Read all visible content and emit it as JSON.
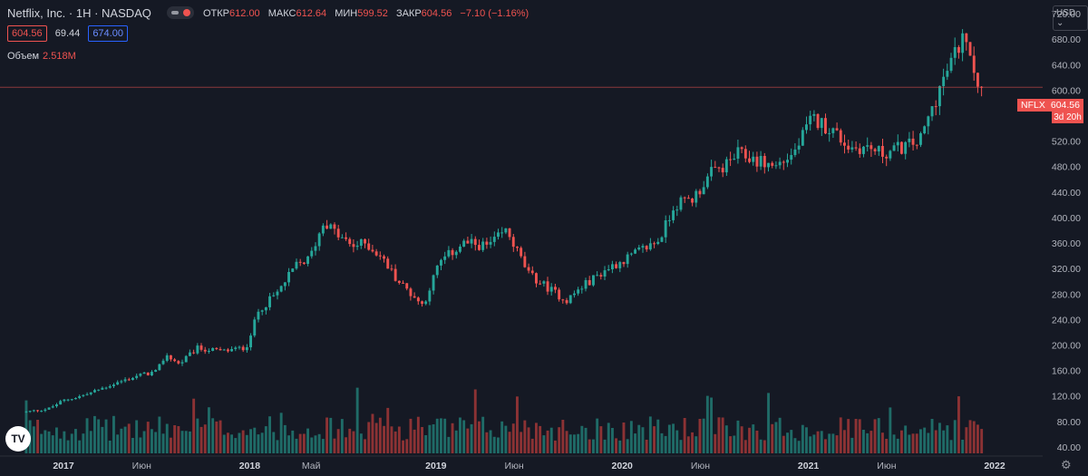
{
  "header": {
    "title": "Netflix, Inc. · 1H · NASDAQ"
  },
  "ohlc": {
    "open_label": "ОТКР",
    "open": "612.00",
    "high_label": "МАКС",
    "high": "612.64",
    "low_label": "МИН",
    "low": "599.52",
    "close_label": "ЗАКР",
    "close": "604.56",
    "change": "−7.10 (−1.16%)"
  },
  "boxes": {
    "last": "604.56",
    "mid": "69.44",
    "ask": "674.00"
  },
  "volume": {
    "label": "Объем",
    "value": "2.518M"
  },
  "currency": {
    "label": "USD",
    "arrow": "⌄"
  },
  "price_label": {
    "ticker": "NFLX",
    "price": "604.56",
    "countdown": "3d 20h"
  },
  "logo": {
    "text": "TV"
  },
  "settings_icon": {
    "glyph": "⚙"
  },
  "colors": {
    "bg": "#151924",
    "up": "#26a69a",
    "down": "#ef5350",
    "upVol": "#1f6b67",
    "downVol": "#8c3234",
    "text": "#b2b5be"
  },
  "chart_data": {
    "type": "candlestick",
    "ylim": [
      30,
      730
    ],
    "y_ticks": [
      "40.00",
      "80.00",
      "120.00",
      "160.00",
      "200.00",
      "240.00",
      "280.00",
      "320.00",
      "360.00",
      "400.00",
      "440.00",
      "480.00",
      "520.00",
      "560.00",
      "600.00",
      "640.00",
      "680.00",
      "720.00"
    ],
    "x_ticks": [
      "2017",
      "Июн",
      "2018",
      "Май",
      "2019",
      "Июн",
      "2020",
      "Июн",
      "2021",
      "Июн",
      "2022"
    ],
    "last_price": 604.56,
    "anchors": [
      [
        2016.8,
        95
      ],
      [
        2016.92,
        100
      ],
      [
        2017.0,
        113
      ],
      [
        2017.12,
        122
      ],
      [
        2017.25,
        137
      ],
      [
        2017.4,
        152
      ],
      [
        2017.5,
        158
      ],
      [
        2017.55,
        185
      ],
      [
        2017.62,
        170
      ],
      [
        2017.72,
        195
      ],
      [
        2017.85,
        190
      ],
      [
        2017.98,
        196
      ],
      [
        2018.05,
        255
      ],
      [
        2018.15,
        282
      ],
      [
        2018.25,
        325
      ],
      [
        2018.32,
        335
      ],
      [
        2018.4,
        395
      ],
      [
        2018.48,
        370
      ],
      [
        2018.55,
        355
      ],
      [
        2018.62,
        360
      ],
      [
        2018.7,
        340
      ],
      [
        2018.8,
        300
      ],
      [
        2018.93,
        262
      ],
      [
        2019.02,
        330
      ],
      [
        2019.15,
        360
      ],
      [
        2019.28,
        355
      ],
      [
        2019.38,
        380
      ],
      [
        2019.5,
        310
      ],
      [
        2019.6,
        290
      ],
      [
        2019.7,
        270
      ],
      [
        2019.8,
        295
      ],
      [
        2019.92,
        320
      ],
      [
        2020.05,
        340
      ],
      [
        2020.2,
        365
      ],
      [
        2020.28,
        420
      ],
      [
        2020.38,
        430
      ],
      [
        2020.48,
        470
      ],
      [
        2020.55,
        480
      ],
      [
        2020.62,
        500
      ],
      [
        2020.72,
        490
      ],
      [
        2020.82,
        480
      ],
      [
        2020.92,
        500
      ],
      [
        2021.02,
        555
      ],
      [
        2021.12,
        540
      ],
      [
        2021.22,
        510
      ],
      [
        2021.32,
        510
      ],
      [
        2021.4,
        500
      ],
      [
        2021.5,
        510
      ],
      [
        2021.6,
        520
      ],
      [
        2021.7,
        600
      ],
      [
        2021.8,
        665
      ],
      [
        2021.85,
        690
      ],
      [
        2021.9,
        620
      ],
      [
        2021.93,
        604.56
      ]
    ]
  }
}
